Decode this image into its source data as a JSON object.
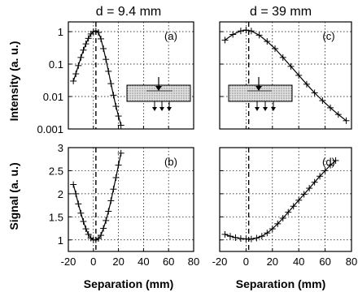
{
  "chart_data": [
    {
      "id": "a",
      "type": "line",
      "title": "d = 9.4 mm",
      "panel_label": "(a)",
      "ylabel": "Intensity (a. u.)",
      "xlabel": "",
      "yscale": "log",
      "xlim": [
        -20,
        80
      ],
      "ylim": [
        0.001,
        2
      ],
      "xticks": [
        -20,
        0,
        20,
        40,
        60,
        80
      ],
      "yticks": [
        {
          "value": 0.001,
          "label": "0.001"
        },
        {
          "value": 0.01,
          "label": "0.01"
        },
        {
          "value": 0.1,
          "label": "0.1"
        },
        {
          "value": 1,
          "label": "1"
        }
      ],
      "grid": true,
      "vline_x": 2,
      "series": [
        {
          "points": [
            [
              -16,
              0.03
            ],
            [
              -14,
              0.05
            ],
            [
              -12,
              0.09
            ],
            [
              -10,
              0.16
            ],
            [
              -8,
              0.27
            ],
            [
              -6,
              0.42
            ],
            [
              -4,
              0.62
            ],
            [
              -2,
              0.85
            ],
            [
              0,
              1.0
            ],
            [
              2,
              1.05
            ],
            [
              4,
              0.95
            ],
            [
              6,
              0.6
            ],
            [
              8,
              0.3
            ],
            [
              10,
              0.14
            ],
            [
              12,
              0.06
            ],
            [
              14,
              0.025
            ],
            [
              16,
              0.011
            ],
            [
              18,
              0.005
            ],
            [
              20,
              0.0025
            ],
            [
              22,
              0.0013
            ]
          ]
        }
      ]
    },
    {
      "id": "c",
      "type": "line",
      "title": "d = 39 mm",
      "panel_label": "(c)",
      "ylabel": "",
      "xlabel": "",
      "yscale": "log",
      "xlim": [
        -20,
        80
      ],
      "ylim": [
        0.001,
        2
      ],
      "xticks": [
        -20,
        0,
        20,
        40,
        60,
        80
      ],
      "yticks": [],
      "grid": true,
      "vline_x": 2,
      "series": [
        {
          "points": [
            [
              -16,
              0.55
            ],
            [
              -10,
              0.82
            ],
            [
              -4,
              1.05
            ],
            [
              0,
              1.12
            ],
            [
              4,
              1.05
            ],
            [
              10,
              0.78
            ],
            [
              16,
              0.5
            ],
            [
              22,
              0.3
            ],
            [
              28,
              0.16
            ],
            [
              34,
              0.085
            ],
            [
              40,
              0.045
            ],
            [
              46,
              0.024
            ],
            [
              52,
              0.013
            ],
            [
              58,
              0.0075
            ],
            [
              64,
              0.0045
            ],
            [
              70,
              0.0028
            ],
            [
              76,
              0.0018
            ]
          ]
        }
      ]
    },
    {
      "id": "b",
      "type": "line",
      "title": "",
      "panel_label": "(b)",
      "ylabel": "Signal (a. u.)",
      "xlabel": "Separation (mm)",
      "yscale": "linear",
      "xlim": [
        -20,
        80
      ],
      "ylim": [
        0.75,
        3
      ],
      "xticks": [
        -20,
        0,
        20,
        40,
        60,
        80
      ],
      "yticks": [
        {
          "value": 1,
          "label": "1"
        },
        {
          "value": 1.5,
          "label": "1.5"
        },
        {
          "value": 2,
          "label": "2"
        },
        {
          "value": 2.5,
          "label": "2.5"
        },
        {
          "value": 3,
          "label": "3"
        }
      ],
      "grid": true,
      "vline_x": 2,
      "series": [
        {
          "points": [
            [
              -16,
              2.2
            ],
            [
              -14,
              2.0
            ],
            [
              -12,
              1.78
            ],
            [
              -10,
              1.58
            ],
            [
              -8,
              1.4
            ],
            [
              -6,
              1.24
            ],
            [
              -4,
              1.12
            ],
            [
              -2,
              1.04
            ],
            [
              0,
              1.0
            ],
            [
              2,
              1.0
            ],
            [
              4,
              1.03
            ],
            [
              6,
              1.1
            ],
            [
              8,
              1.25
            ],
            [
              10,
              1.42
            ],
            [
              12,
              1.62
            ],
            [
              14,
              1.85
            ],
            [
              16,
              2.1
            ],
            [
              18,
              2.35
            ],
            [
              20,
              2.62
            ],
            [
              22,
              2.88
            ]
          ]
        }
      ]
    },
    {
      "id": "d",
      "type": "line",
      "title": "",
      "panel_label": "(d)",
      "ylabel": "",
      "xlabel": "Separation (mm)",
      "yscale": "linear",
      "xlim": [
        -20,
        80
      ],
      "ylim": [
        0.75,
        3
      ],
      "xticks": [
        -20,
        0,
        20,
        40,
        60,
        80
      ],
      "yticks": [],
      "grid": true,
      "vline_x": 2,
      "series": [
        {
          "points": [
            [
              -16,
              1.12
            ],
            [
              -12,
              1.08
            ],
            [
              -8,
              1.05
            ],
            [
              -4,
              1.03
            ],
            [
              0,
              1.02
            ],
            [
              4,
              1.02
            ],
            [
              8,
              1.04
            ],
            [
              12,
              1.08
            ],
            [
              16,
              1.15
            ],
            [
              20,
              1.24
            ],
            [
              24,
              1.35
            ],
            [
              28,
              1.47
            ],
            [
              32,
              1.6
            ],
            [
              36,
              1.73
            ],
            [
              40,
              1.86
            ],
            [
              44,
              1.99
            ],
            [
              48,
              2.12
            ],
            [
              52,
              2.25
            ],
            [
              56,
              2.38
            ],
            [
              60,
              2.5
            ],
            [
              64,
              2.62
            ],
            [
              68,
              2.72
            ]
          ]
        }
      ]
    }
  ]
}
